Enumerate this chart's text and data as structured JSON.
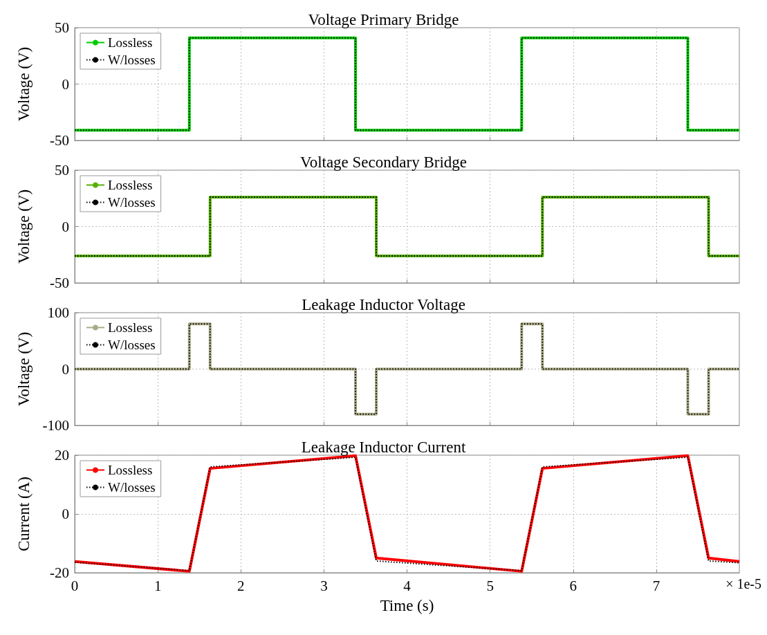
{
  "chart_data": [
    {
      "type": "line",
      "title": "Voltage Primary Bridge",
      "ylabel": "Voltage (V)",
      "xlim": [
        0,
        8
      ],
      "xticks": [
        0,
        1,
        2,
        3,
        4,
        5,
        6,
        7
      ],
      "ylim": [
        -50,
        50
      ],
      "yticks": [
        -50,
        0,
        50
      ],
      "grid": true,
      "legend": "top left",
      "tick_labels": "y",
      "series": [
        {
          "name": "Lossless",
          "color": "#00cc00",
          "line_style": "solid",
          "x": [
            0,
            1.38,
            1.38,
            3.38,
            3.38,
            5.38,
            5.38,
            7.38,
            7.38,
            8
          ],
          "values": [
            -41,
            -41,
            41,
            41,
            -41,
            -41,
            41,
            41,
            -41,
            -41
          ]
        },
        {
          "name": "W/losses",
          "color": "#000000",
          "line_style": "dotted",
          "x": [
            0,
            1.38,
            1.38,
            3.38,
            3.38,
            5.38,
            5.38,
            7.38,
            7.38,
            8
          ],
          "values": [
            -41,
            -41,
            41,
            41,
            -41,
            -41,
            41,
            41,
            -41,
            -41
          ]
        }
      ]
    },
    {
      "type": "line",
      "title": "Voltage Secondary Bridge",
      "ylabel": "Voltage (V)",
      "xlim": [
        0,
        8
      ],
      "xticks": [
        0,
        1,
        2,
        3,
        4,
        5,
        6,
        7
      ],
      "ylim": [
        -50,
        50
      ],
      "yticks": [
        -50,
        0,
        50
      ],
      "grid": true,
      "legend": "top left",
      "tick_labels": "y",
      "series": [
        {
          "name": "Lossless",
          "color": "#55b000",
          "line_style": "solid",
          "x": [
            0,
            1.63,
            1.63,
            3.63,
            3.63,
            5.63,
            5.63,
            7.63,
            7.63,
            8
          ],
          "values": [
            -26,
            -26,
            26,
            26,
            -26,
            -26,
            26,
            26,
            -26,
            -26
          ]
        },
        {
          "name": "W/losses",
          "color": "#000000",
          "line_style": "dotted",
          "x": [
            0,
            1.63,
            1.63,
            3.63,
            3.63,
            5.63,
            5.63,
            7.63,
            7.63,
            8
          ],
          "values": [
            -26,
            -26,
            26,
            26,
            -26,
            -26,
            26,
            26,
            -26,
            -26
          ]
        }
      ]
    },
    {
      "type": "line",
      "title": "Leakage Inductor Voltage",
      "ylabel": "Voltage (V)",
      "xlim": [
        0,
        8
      ],
      "xticks": [
        0,
        1,
        2,
        3,
        4,
        5,
        6,
        7
      ],
      "ylim": [
        -100,
        100
      ],
      "yticks": [
        -100,
        0,
        100
      ],
      "grid": true,
      "legend": "top left",
      "tick_labels": "y",
      "series": [
        {
          "name": "Lossless",
          "color": "#aaaa88",
          "line_style": "solid",
          "x": [
            0,
            1.38,
            1.38,
            1.63,
            1.63,
            3.38,
            3.38,
            3.63,
            3.63,
            5.38,
            5.38,
            5.63,
            5.63,
            7.38,
            7.38,
            7.63,
            7.63,
            8
          ],
          "values": [
            0,
            0,
            80,
            80,
            0,
            0,
            -80,
            -80,
            0,
            0,
            80,
            80,
            0,
            0,
            -80,
            -80,
            0,
            0
          ]
        },
        {
          "name": "W/losses",
          "color": "#000000",
          "line_style": "dotted",
          "x": [
            0,
            1.38,
            1.38,
            1.63,
            1.63,
            3.38,
            3.38,
            3.63,
            3.63,
            5.38,
            5.38,
            5.63,
            5.63,
            7.38,
            7.38,
            7.63,
            7.63,
            8
          ],
          "values": [
            0,
            0,
            80,
            80,
            0,
            0,
            -80,
            -80,
            0,
            0,
            80,
            80,
            0,
            0,
            -80,
            -80,
            0,
            0
          ]
        }
      ]
    },
    {
      "type": "line",
      "title": "Leakage Inductor Current",
      "xlabel": "Time (s)",
      "ylabel": "Current (A)",
      "xlim": [
        0,
        8
      ],
      "xticks": [
        0,
        1,
        2,
        3,
        4,
        5,
        6,
        7
      ],
      "ylim": [
        -20,
        20
      ],
      "yticks": [
        -20,
        0,
        20
      ],
      "grid": true,
      "legend": "top left",
      "annotations": [
        "× 1e-5"
      ],
      "series": [
        {
          "name": "Lossless",
          "color": "#ff0000",
          "line_style": "solid",
          "x": [
            0,
            1.38,
            1.63,
            3.38,
            3.63,
            5.38,
            5.63,
            7.38,
            7.63,
            8
          ],
          "values": [
            -16.2,
            -19.5,
            15.5,
            19.8,
            -15,
            -19.5,
            15.5,
            19.8,
            -15,
            -16.2
          ]
        },
        {
          "name": "W/losses",
          "color": "#000000",
          "line_style": "dotted",
          "x": [
            0,
            1.38,
            1.63,
            3.38,
            3.63,
            5.38,
            5.63,
            7.38,
            7.63,
            8
          ],
          "values": [
            -16.4,
            -19.3,
            16,
            19.3,
            -16,
            -19.3,
            16,
            19.3,
            -16,
            -16.6
          ]
        }
      ]
    }
  ]
}
